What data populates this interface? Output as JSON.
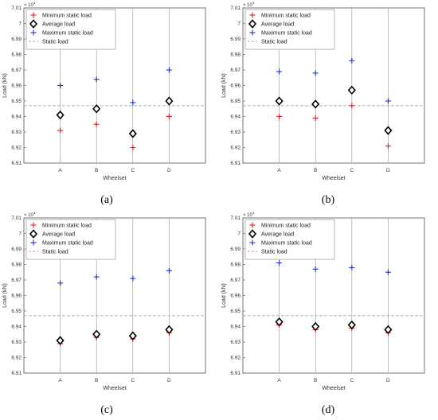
{
  "colors": {
    "minimum": "#e41a1c",
    "average": "#000000",
    "maximum": "#1f2fd0",
    "static": "#b0b0b0",
    "grid": "#9a9a9a"
  },
  "chart_data": [
    {
      "caption": "(a)",
      "type": "scatter",
      "xlabel": "Wheelset",
      "ylabel": "Load (kN)",
      "exponent": "× 10",
      "exponent_power": "1",
      "categories": [
        "A",
        "B",
        "C",
        "D"
      ],
      "ylim": [
        6.91,
        7.01
      ],
      "yticks": [
        "6.91",
        "6.92",
        "6.93",
        "6.94",
        "6.95",
        "6.96",
        "6.97",
        "6.98",
        "6.99",
        "7",
        "7.01"
      ],
      "grid": "vertical gridlines at each wheelset",
      "legend_position": "top-left",
      "series": [
        {
          "name": "Minimum static load",
          "marker": "plus",
          "values": [
            6.931,
            6.935,
            6.92,
            6.94
          ]
        },
        {
          "name": "Average load",
          "marker": "diamond",
          "values": [
            6.941,
            6.945,
            6.929,
            6.95
          ]
        },
        {
          "name": "Maximum static load",
          "marker": "plus",
          "values": [
            6.96,
            6.964,
            6.949,
            6.97
          ]
        }
      ],
      "static_load": {
        "name": "Static load",
        "value": 6.947
      }
    },
    {
      "caption": "(b)",
      "type": "scatter",
      "xlabel": "Wheelset",
      "ylabel": "Load (kN)",
      "exponent": "× 10",
      "exponent_power": "1",
      "categories": [
        "A",
        "B",
        "C",
        "D"
      ],
      "ylim": [
        6.91,
        7.01
      ],
      "yticks": [
        "6.91",
        "6.92",
        "6.93",
        "6.94",
        "6.95",
        "6.96",
        "6.97",
        "6.98",
        "6.99",
        "7",
        "7.01"
      ],
      "grid": "vertical gridlines at each wheelset",
      "legend_position": "top-left",
      "series": [
        {
          "name": "Minimum static load",
          "marker": "plus",
          "values": [
            6.94,
            6.939,
            6.947,
            6.921
          ]
        },
        {
          "name": "Average load",
          "marker": "diamond",
          "values": [
            6.95,
            6.948,
            6.957,
            6.931
          ]
        },
        {
          "name": "Maximum static load",
          "marker": "plus",
          "values": [
            6.969,
            6.968,
            6.976,
            6.95
          ]
        }
      ],
      "static_load": {
        "name": "Static load",
        "value": 6.947
      }
    },
    {
      "caption": "(c)",
      "type": "scatter",
      "xlabel": "Wheelset",
      "ylabel": "Load (kN)",
      "exponent": "× 10",
      "exponent_power": "1",
      "categories": [
        "A",
        "B",
        "C",
        "D"
      ],
      "ylim": [
        6.91,
        7.01
      ],
      "yticks": [
        "6.91",
        "6.92",
        "6.93",
        "6.94",
        "6.95",
        "6.96",
        "6.97",
        "6.98",
        "6.99",
        "7",
        "7.01"
      ],
      "grid": "vertical gridlines at each wheelset",
      "legend_position": "top-left",
      "series": [
        {
          "name": "Minimum static load",
          "marker": "plus",
          "values": [
            6.929,
            6.933,
            6.932,
            6.936
          ]
        },
        {
          "name": "Average load",
          "marker": "diamond",
          "values": [
            6.931,
            6.935,
            6.934,
            6.938
          ]
        },
        {
          "name": "Maximum static load",
          "marker": "plus",
          "values": [
            6.968,
            6.972,
            6.971,
            6.976
          ]
        }
      ],
      "static_load": {
        "name": "Static load",
        "value": 6.947
      }
    },
    {
      "caption": "(d)",
      "type": "scatter",
      "xlabel": "Wheelset",
      "ylabel": "Load (kN)",
      "exponent": "× 10",
      "exponent_power": "1",
      "categories": [
        "A",
        "B",
        "C",
        "D"
      ],
      "ylim": [
        6.91,
        7.01
      ],
      "yticks": [
        "6.91",
        "6.92",
        "6.93",
        "6.94",
        "6.95",
        "6.96",
        "6.97",
        "6.98",
        "6.99",
        "7",
        "7.01"
      ],
      "grid": "vertical gridlines at each wheelset",
      "legend_position": "top-left",
      "series": [
        {
          "name": "Minimum static load",
          "marker": "plus",
          "values": [
            6.941,
            6.938,
            6.939,
            6.936
          ]
        },
        {
          "name": "Average load",
          "marker": "diamond",
          "values": [
            6.943,
            6.94,
            6.941,
            6.938
          ]
        },
        {
          "name": "Maximum static load",
          "marker": "plus",
          "values": [
            6.981,
            6.977,
            6.978,
            6.975
          ]
        }
      ],
      "static_load": {
        "name": "Static load",
        "value": 6.947
      }
    }
  ]
}
